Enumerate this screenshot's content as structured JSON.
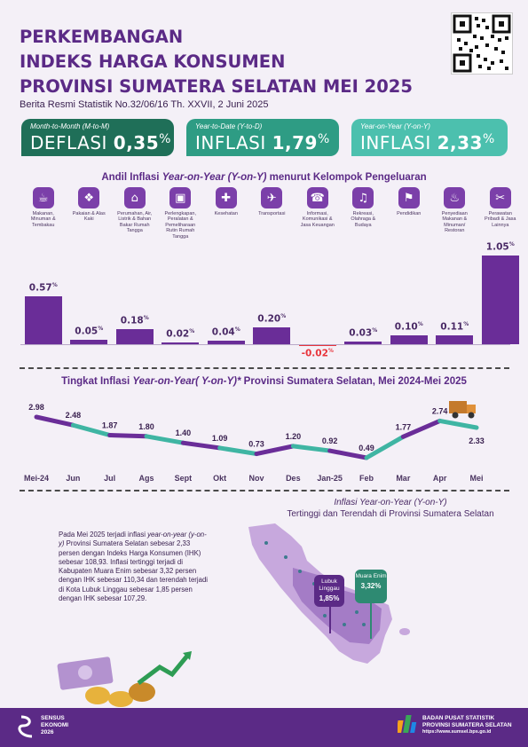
{
  "header": {
    "title_line1": "PERKEMBANGAN",
    "title_line2": "INDEKS HARGA KONSUMEN",
    "title_line3": "PROVINSI SUMATERA SELATAN MEI 2025",
    "subtitle": "Berita Resmi Statistik No.32/06/16 Th. XXVII, 2 Juni 2025"
  },
  "stats": [
    {
      "label": "Month-to-Month (M-to-M)",
      "kind": "DEFLASI",
      "value": "0,35",
      "unit": "%",
      "color": "#1f6f58"
    },
    {
      "label": "Year-to-Date (Y-to-D)",
      "kind": "INFLASI",
      "value": "1,79",
      "unit": "%",
      "color": "#2e9c84"
    },
    {
      "label": "Year-on-Year (Y-on-Y)",
      "kind": "INFLASI",
      "value": "2,33",
      "unit": "%",
      "color": "#4cc0ae"
    }
  ],
  "bar_section": {
    "title_pre": "Andil Inflasi ",
    "title_em": "Year-on-Year (Y-on-Y)",
    "title_post": " menurut Kelompok Pengeluaran"
  },
  "categories": [
    {
      "icon": "food-icon",
      "glyph": "☕",
      "label": "Makanan, Minuman & Tembakau"
    },
    {
      "icon": "clothing-icon",
      "glyph": "❖",
      "label": "Pakaian & Alas Kaki"
    },
    {
      "icon": "house-icon",
      "glyph": "⌂",
      "label": "Perumahan, Air, Listrik & Bahan Bakar Rumah Tangga"
    },
    {
      "icon": "household-icon",
      "glyph": "▣",
      "label": "Perlengkapan, Peralatan & Pemeliharaan Rutin Rumah Tangga"
    },
    {
      "icon": "health-icon",
      "glyph": "✚",
      "label": "Kesehatan"
    },
    {
      "icon": "plane-icon",
      "glyph": "✈",
      "label": "Transportasi"
    },
    {
      "icon": "phone-icon",
      "glyph": "☎",
      "label": "Informasi, Komunikasi & Jasa Keuangan"
    },
    {
      "icon": "recreation-icon",
      "glyph": "♫",
      "label": "Rekreasi, Olahraga & Budaya"
    },
    {
      "icon": "graduation-cap-icon",
      "glyph": "⚑",
      "label": "Pendidikan"
    },
    {
      "icon": "food-cart-icon",
      "glyph": "♨",
      "label": "Penyediaan Makanan & Minuman/ Restoran"
    },
    {
      "icon": "tools-icon",
      "glyph": "✂",
      "label": "Perawatan Pribadi & Jasa Lainnya"
    }
  ],
  "line_section": {
    "title_pre": "Tingkat Inflasi ",
    "title_em": "Year-on-Year( Y-on-Y)*",
    "title_post": " Provinsi Sumatera Selatan, Mei 2024-Mei 2025"
  },
  "chart_data": [
    {
      "type": "bar",
      "title": "Andil Inflasi Year-on-Year (Y-on-Y) menurut Kelompok Pengeluaran",
      "categories": [
        "Makanan, Minuman & Tembakau",
        "Pakaian & Alas Kaki",
        "Perumahan, Air, Listrik & Bahan Bakar Rumah Tangga",
        "Perlengkapan, Peralatan & Pemeliharaan Rutin Rumah Tangga",
        "Kesehatan",
        "Transportasi",
        "Informasi, Komunikasi & Jasa Keuangan",
        "Rekreasi, Olahraga & Budaya",
        "Pendidikan",
        "Penyediaan Makanan & Minuman/ Restoran",
        "Perawatan Pribadi & Jasa Lainnya"
      ],
      "values": [
        0.57,
        0.05,
        0.18,
        0.02,
        0.04,
        0.2,
        -0.02,
        0.03,
        0.1,
        0.11,
        1.05
      ],
      "value_labels": [
        "0.57",
        "0.05",
        "0.18",
        "0.02",
        "0.04",
        "0.20",
        "-0.02",
        "0.03",
        "0.10",
        "0.11",
        "1.05"
      ],
      "unit": "%",
      "colors": {
        "positive": "#6a2d98",
        "negative": "#e8333a"
      }
    },
    {
      "type": "line",
      "title": "Tingkat Inflasi Year-on-Year( Y-on-Y)* Provinsi Sumatera Selatan, Mei 2024-Mei 2025",
      "x": [
        "Mei-24",
        "Jun",
        "Jul",
        "Ags",
        "Sept",
        "Okt",
        "Nov",
        "Des",
        "Jan-25",
        "Feb",
        "Mar",
        "Apr",
        "Mei"
      ],
      "values": [
        2.98,
        2.48,
        1.87,
        1.8,
        1.4,
        1.09,
        0.73,
        1.2,
        0.92,
        0.49,
        1.77,
        2.74,
        2.33
      ],
      "value_labels": [
        "2.98",
        "2.48",
        "1.87",
        "1.80",
        "1.40",
        "1.09",
        "0.73",
        "1.20",
        "0.92",
        "0.49",
        "1.77",
        "2.74",
        "2.33"
      ],
      "colors": [
        "#6a2d98",
        "#3fb5a3"
      ]
    }
  ],
  "narrative": {
    "p1": "Pada Mei 2025 terjadi inflasi ",
    "p1_em": "year-on-year (y-on-y)",
    "p2": " Provinsi Sumatera Selatan sebesar 2,33 persen dengan Indeks Harga Konsumen (IHK) sebesar 108,93. Inflasi tertinggi terjadi di Kabupaten Muara Enim sebesar 3,32 persen dengan IHK sebesar 110,34 dan terendah terjadi di Kota Lubuk Linggau sebesar 1,85 persen dengan IHK sebesar 107,29."
  },
  "map": {
    "title_em": "Inflasi Year-on-Year (Y-on-Y)",
    "title_rest": "Tertinggi dan Terendah di Provinsi Sumatera Selatan",
    "low": {
      "name": "Lubuk Linggau",
      "value": "1,85%",
      "color": "#5b2a86"
    },
    "high": {
      "name": "Muara Enim",
      "value": "3,32%",
      "color": "#2e8a72"
    }
  },
  "footer": {
    "sensus_line1": "SENSUS",
    "sensus_line2": "EKONOMI",
    "sensus_line3": "2026",
    "bps_line1": "BADAN PUSAT STATISTIK",
    "bps_line2": "PROVINSI SUMATERA SELATAN",
    "bps_url": "https://www.sumsel.bps.go.id"
  }
}
